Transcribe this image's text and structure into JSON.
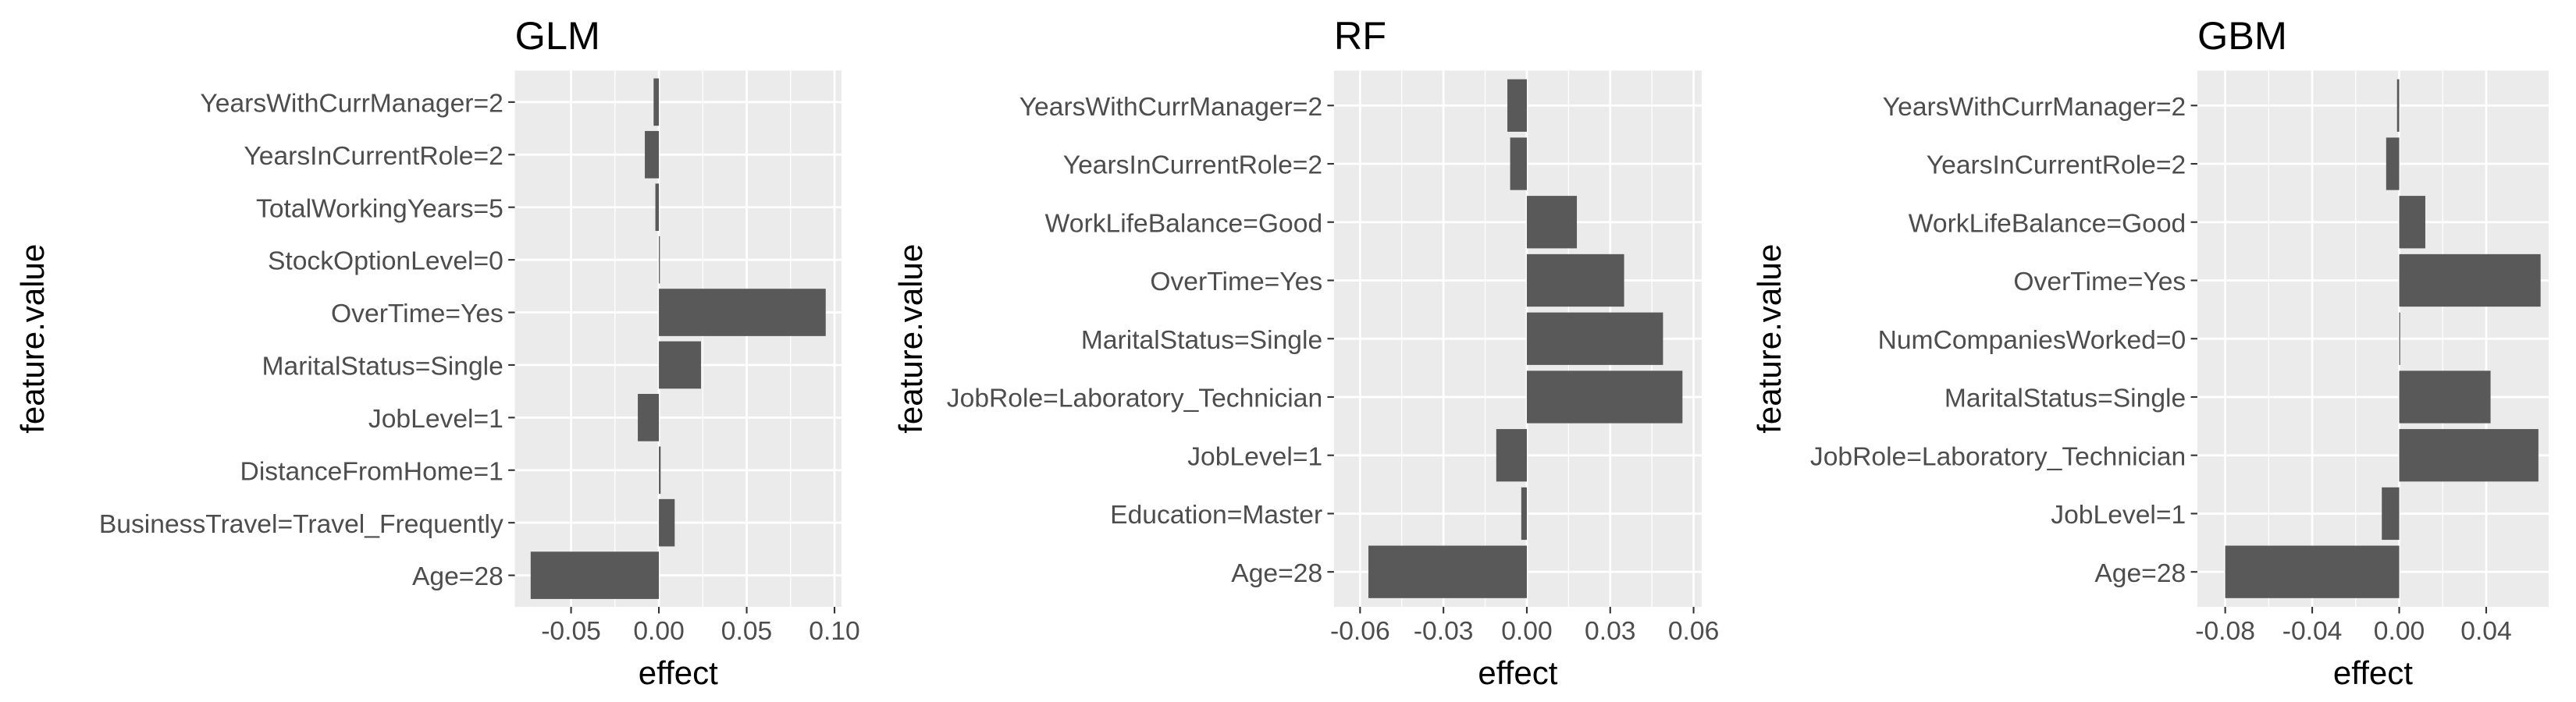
{
  "chart_data": [
    {
      "type": "hbar",
      "title": "GLM",
      "xlabel": "effect",
      "ylabel": "feature.value",
      "color": "#595959",
      "grid": true,
      "categories": [
        "YearsWithCurrManager=2",
        "YearsInCurrentRole=2",
        "TotalWorkingYears=5",
        "StockOptionLevel=0",
        "OverTime=Yes",
        "MaritalStatus=Single",
        "JobLevel=1",
        "DistanceFromHome=1",
        "BusinessTravel=Travel_Frequently",
        "Age=28"
      ],
      "values": [
        -0.003,
        -0.008,
        -0.002,
        0.0,
        0.095,
        0.024,
        -0.012,
        0.001,
        0.009,
        -0.073
      ],
      "xlim": [
        -0.082,
        0.104
      ],
      "xticks": [
        -0.05,
        {
          "value": 0,
          "label": "0.00"
        },
        0.05,
        {
          "value": 0.1,
          "label": "0.10"
        }
      ]
    },
    {
      "type": "hbar",
      "title": "RF",
      "xlabel": "effect",
      "ylabel": "feature.value",
      "color": "#595959",
      "grid": true,
      "categories": [
        "YearsWithCurrManager=2",
        "YearsInCurrentRole=2",
        "WorkLifeBalance=Good",
        "OverTime=Yes",
        "MaritalStatus=Single",
        "JobRole=Laboratory_Technician",
        "JobLevel=1",
        "Education=Master",
        "Age=28"
      ],
      "values": [
        -0.007,
        -0.006,
        0.018,
        0.035,
        0.049,
        0.056,
        -0.011,
        -0.002,
        -0.057
      ],
      "xlim": [
        -0.0694,
        0.0629
      ],
      "xticks": [
        -0.06,
        -0.03,
        {
          "value": 0,
          "label": "0.00"
        },
        0.03,
        0.06
      ]
    },
    {
      "type": "hbar",
      "title": "GBM",
      "xlabel": "effect",
      "ylabel": "feature.value",
      "color": "#595959",
      "grid": true,
      "categories": [
        "YearsWithCurrManager=2",
        "YearsInCurrentRole=2",
        "WorkLifeBalance=Good",
        "OverTime=Yes",
        "NumCompaniesWorked=0",
        "MaritalStatus=Single",
        "JobRole=Laboratory_Technician",
        "JobLevel=1",
        "Age=28"
      ],
      "values": [
        -0.001,
        -0.006,
        0.012,
        0.065,
        0.0,
        0.042,
        0.064,
        -0.008,
        -0.08
      ],
      "xlim": [
        -0.0928,
        0.0687
      ],
      "xticks": [
        -0.08,
        -0.04,
        {
          "value": 0,
          "label": "0.00"
        },
        0.04
      ]
    }
  ]
}
